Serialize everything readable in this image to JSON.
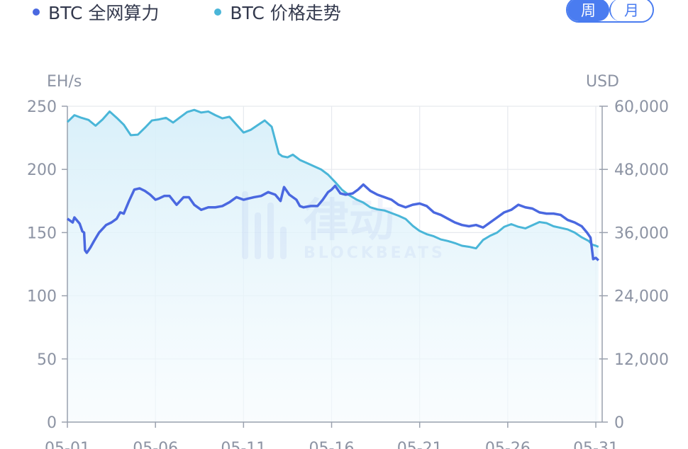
{
  "legend": {
    "hashrate_label": "BTC 全网算力",
    "price_label": "BTC 价格走势"
  },
  "toggle": {
    "week_label": "周",
    "month_label": "月",
    "selected": "周"
  },
  "colors": {
    "hashrate": "#4a68e0",
    "price": "#4ab6d8",
    "area_top": "#d7eff9",
    "area_bottom": "#f5fbfe",
    "grid": "#e6e9ee",
    "axis": "#9aa1ae",
    "tick_text": "#8c93a3"
  },
  "watermark": {
    "text": "律动",
    "subtext": "BLOCKBEATS"
  },
  "chart_data": {
    "type": "line",
    "y_left_label": "EH/s",
    "y_right_label": "USD",
    "y_left_ticks": [
      "0",
      "50",
      "100",
      "150",
      "200",
      "250"
    ],
    "y_right_ticks": [
      "0",
      "12,000",
      "24,000",
      "36,000",
      "48,000",
      "60,000"
    ],
    "y_left_range": [
      0,
      250
    ],
    "y_right_range": [
      0,
      60000
    ],
    "x_range": [
      0,
      30.2
    ],
    "x_ticks": [
      {
        "x": 0,
        "label": "05-01"
      },
      {
        "x": 5,
        "label": "05-06"
      },
      {
        "x": 10,
        "label": "05-11"
      },
      {
        "x": 15,
        "label": "05-16"
      },
      {
        "x": 20,
        "label": "05-21"
      },
      {
        "x": 25,
        "label": "05-26"
      },
      {
        "x": 30,
        "label": "05-31"
      }
    ],
    "grid": true,
    "legend_position": "top-left",
    "series": [
      {
        "name": "BTC 全网算力",
        "axis": "left",
        "points": [
          [
            0,
            161
          ],
          [
            0.3,
            158
          ],
          [
            0.4,
            162
          ],
          [
            0.7,
            157
          ],
          [
            0.85,
            151
          ],
          [
            0.95,
            150
          ],
          [
            1.0,
            136
          ],
          [
            1.1,
            134
          ],
          [
            1.3,
            138
          ],
          [
            1.5,
            143
          ],
          [
            1.8,
            150
          ],
          [
            2.2,
            156
          ],
          [
            2.5,
            158
          ],
          [
            2.8,
            161
          ],
          [
            3.0,
            166
          ],
          [
            3.2,
            165
          ],
          [
            3.5,
            175
          ],
          [
            3.8,
            184
          ],
          [
            4.1,
            185
          ],
          [
            4.4,
            183
          ],
          [
            4.7,
            180
          ],
          [
            5.0,
            176
          ],
          [
            5.2,
            177
          ],
          [
            5.5,
            179
          ],
          [
            5.8,
            179
          ],
          [
            6.2,
            172
          ],
          [
            6.6,
            178
          ],
          [
            6.9,
            178
          ],
          [
            7.2,
            172
          ],
          [
            7.6,
            168
          ],
          [
            8.0,
            170
          ],
          [
            8.4,
            170
          ],
          [
            8.8,
            171
          ],
          [
            9.2,
            174
          ],
          [
            9.6,
            178
          ],
          [
            10.0,
            176
          ],
          [
            10.3,
            177
          ],
          [
            10.6,
            178
          ],
          [
            11.0,
            179
          ],
          [
            11.4,
            182
          ],
          [
            11.8,
            180
          ],
          [
            12.1,
            175
          ],
          [
            12.3,
            186
          ],
          [
            12.6,
            180
          ],
          [
            13.0,
            176
          ],
          [
            13.2,
            171
          ],
          [
            13.4,
            170
          ],
          [
            13.8,
            171
          ],
          [
            14.2,
            171
          ],
          [
            14.5,
            176
          ],
          [
            14.8,
            182
          ],
          [
            15.0,
            184
          ],
          [
            15.2,
            187
          ],
          [
            15.5,
            181
          ],
          [
            15.8,
            180
          ],
          [
            16.2,
            181
          ],
          [
            16.5,
            184
          ],
          [
            16.8,
            188
          ],
          [
            17.2,
            183
          ],
          [
            17.6,
            180
          ],
          [
            18.0,
            178
          ],
          [
            18.4,
            176
          ],
          [
            18.8,
            172
          ],
          [
            19.2,
            170
          ],
          [
            19.6,
            172
          ],
          [
            20.0,
            173
          ],
          [
            20.4,
            171
          ],
          [
            20.8,
            166
          ],
          [
            21.2,
            164
          ],
          [
            21.6,
            161
          ],
          [
            22.0,
            158
          ],
          [
            22.4,
            156
          ],
          [
            22.8,
            155
          ],
          [
            23.2,
            156
          ],
          [
            23.6,
            154
          ],
          [
            24.0,
            158
          ],
          [
            24.4,
            162
          ],
          [
            24.8,
            166
          ],
          [
            25.2,
            168
          ],
          [
            25.6,
            172
          ],
          [
            26.0,
            170
          ],
          [
            26.4,
            169
          ],
          [
            26.8,
            166
          ],
          [
            27.2,
            165
          ],
          [
            27.6,
            165
          ],
          [
            28.0,
            164
          ],
          [
            28.4,
            160
          ],
          [
            28.8,
            158
          ],
          [
            29.2,
            155
          ],
          [
            29.5,
            150
          ],
          [
            29.7,
            146
          ],
          [
            29.85,
            129
          ],
          [
            30.0,
            130
          ],
          [
            30.15,
            128
          ]
        ]
      },
      {
        "name": "BTC 价格走势",
        "axis": "right",
        "points": [
          [
            0,
            57000
          ],
          [
            0.4,
            58300
          ],
          [
            0.8,
            57800
          ],
          [
            1.2,
            57400
          ],
          [
            1.6,
            56300
          ],
          [
            2.0,
            57500
          ],
          [
            2.4,
            59000
          ],
          [
            2.8,
            57800
          ],
          [
            3.2,
            56500
          ],
          [
            3.6,
            54500
          ],
          [
            4.0,
            54600
          ],
          [
            4.4,
            55900
          ],
          [
            4.8,
            57300
          ],
          [
            5.2,
            57500
          ],
          [
            5.6,
            57800
          ],
          [
            6.0,
            56900
          ],
          [
            6.4,
            57900
          ],
          [
            6.8,
            58900
          ],
          [
            7.2,
            59300
          ],
          [
            7.6,
            58800
          ],
          [
            8.0,
            59000
          ],
          [
            8.4,
            58300
          ],
          [
            8.8,
            57700
          ],
          [
            9.2,
            58000
          ],
          [
            9.6,
            56500
          ],
          [
            10.0,
            55000
          ],
          [
            10.4,
            55500
          ],
          [
            10.8,
            56400
          ],
          [
            11.2,
            57300
          ],
          [
            11.6,
            56100
          ],
          [
            12.0,
            51000
          ],
          [
            12.2,
            50500
          ],
          [
            12.5,
            50300
          ],
          [
            12.8,
            50800
          ],
          [
            13.2,
            49800
          ],
          [
            13.6,
            49200
          ],
          [
            14.0,
            48600
          ],
          [
            14.4,
            48000
          ],
          [
            14.8,
            47000
          ],
          [
            15.2,
            45600
          ],
          [
            15.6,
            44100
          ],
          [
            16.0,
            43100
          ],
          [
            16.4,
            42300
          ],
          [
            16.8,
            41700
          ],
          [
            17.2,
            40800
          ],
          [
            17.6,
            40400
          ],
          [
            18.0,
            40200
          ],
          [
            18.4,
            39700
          ],
          [
            18.8,
            39200
          ],
          [
            19.2,
            38600
          ],
          [
            19.6,
            37300
          ],
          [
            20.0,
            36300
          ],
          [
            20.4,
            35700
          ],
          [
            20.8,
            35300
          ],
          [
            21.2,
            34700
          ],
          [
            21.6,
            34400
          ],
          [
            22.0,
            34000
          ],
          [
            22.4,
            33500
          ],
          [
            22.8,
            33300
          ],
          [
            23.2,
            33000
          ],
          [
            23.6,
            34600
          ],
          [
            24.0,
            35400
          ],
          [
            24.4,
            36000
          ],
          [
            24.8,
            37100
          ],
          [
            25.2,
            37600
          ],
          [
            25.6,
            37100
          ],
          [
            26.0,
            36800
          ],
          [
            26.4,
            37400
          ],
          [
            26.8,
            38000
          ],
          [
            27.2,
            37800
          ],
          [
            27.6,
            37200
          ],
          [
            28.0,
            36900
          ],
          [
            28.4,
            36600
          ],
          [
            28.8,
            36000
          ],
          [
            29.2,
            35100
          ],
          [
            29.6,
            34400
          ],
          [
            29.8,
            33700
          ],
          [
            30.0,
            33500
          ],
          [
            30.15,
            33300
          ]
        ]
      }
    ]
  }
}
